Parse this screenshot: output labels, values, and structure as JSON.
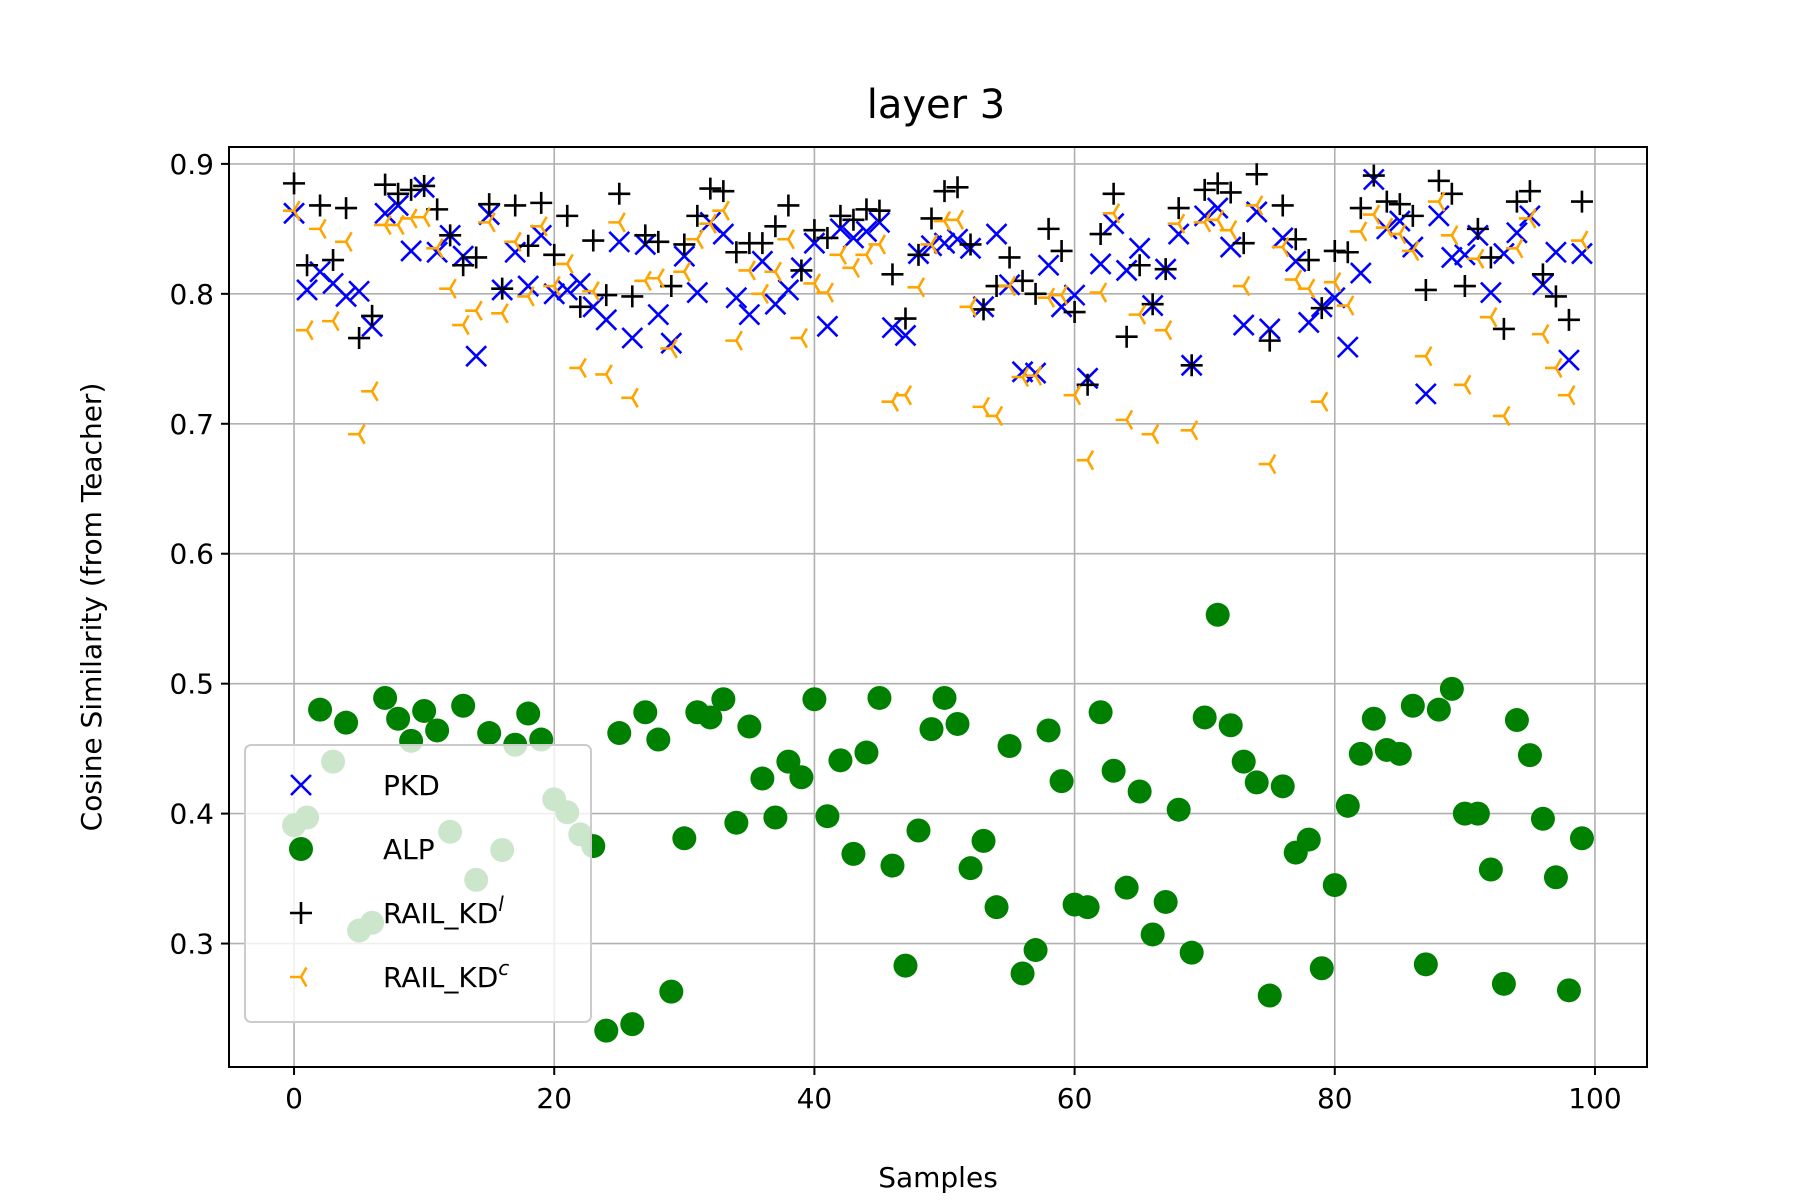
{
  "chart_data": {
    "type": "scatter",
    "title": "layer 3",
    "xlabel": "Samples",
    "ylabel": "Cosine Similarity (from Teacher)",
    "xlim": [
      -5,
      104
    ],
    "ylim": [
      0.205,
      0.913
    ],
    "xticks": [
      0,
      20,
      40,
      60,
      80,
      100
    ],
    "yticks": [
      0.3,
      0.4,
      0.5,
      0.6,
      0.7,
      0.8,
      0.9
    ],
    "xtick_labels": [
      "0",
      "20",
      "40",
      "60",
      "80",
      "100"
    ],
    "ytick_labels": [
      "0.3",
      "0.4",
      "0.5",
      "0.6",
      "0.7",
      "0.8",
      "0.9"
    ],
    "grid": true,
    "legend_position": "lower-left",
    "series": [
      {
        "name": "PKD",
        "marker": "x",
        "color": "#0000ff",
        "y": [
          0.862,
          0.803,
          0.817,
          0.808,
          0.798,
          0.802,
          0.775,
          0.862,
          0.868,
          0.833,
          0.882,
          0.832,
          0.845,
          0.829,
          0.752,
          0.861,
          0.803,
          0.832,
          0.806,
          0.845,
          0.8,
          0.803,
          0.808,
          0.79,
          0.78,
          0.84,
          0.766,
          0.838,
          0.784,
          0.762,
          0.829,
          0.801,
          0.855,
          0.846,
          0.797,
          0.784,
          0.825,
          0.792,
          0.803,
          0.82,
          0.839,
          0.775,
          0.85,
          0.843,
          0.848,
          0.855,
          0.774,
          0.768,
          0.831,
          0.837,
          0.839,
          0.842,
          0.835,
          0.79,
          0.846,
          0.807,
          0.74,
          0.739,
          0.822,
          0.79,
          0.799,
          0.735,
          0.823,
          0.854,
          0.818,
          0.835,
          0.791,
          0.819,
          0.846,
          0.745,
          0.86,
          0.866,
          0.836,
          0.776,
          0.863,
          0.773,
          0.843,
          0.825,
          0.778,
          0.79,
          0.797,
          0.759,
          0.816,
          0.888,
          0.85,
          0.856,
          0.836,
          0.723,
          0.86,
          0.828,
          0.83,
          0.845,
          0.801,
          0.831,
          0.847,
          0.86,
          0.807,
          0.832,
          0.749,
          0.831
        ]
      },
      {
        "name": "ALP",
        "marker": "o",
        "color": "#008000",
        "y": [
          0.391,
          0.397,
          0.48,
          0.44,
          0.47,
          0.31,
          0.316,
          0.489,
          0.473,
          0.456,
          0.479,
          0.464,
          0.386,
          0.483,
          0.349,
          0.462,
          0.372,
          0.453,
          0.477,
          0.457,
          0.411,
          0.401,
          0.384,
          0.375,
          0.233,
          0.462,
          0.238,
          0.478,
          0.457,
          0.263,
          0.381,
          0.478,
          0.474,
          0.488,
          0.393,
          0.467,
          0.427,
          0.397,
          0.44,
          0.428,
          0.488,
          0.398,
          0.441,
          0.369,
          0.447,
          0.489,
          0.36,
          0.283,
          0.387,
          0.465,
          0.489,
          0.469,
          0.358,
          0.379,
          0.328,
          0.452,
          0.277,
          0.295,
          0.464,
          0.425,
          0.33,
          0.328,
          0.478,
          0.433,
          0.343,
          0.417,
          0.307,
          0.332,
          0.403,
          0.293,
          0.474,
          0.553,
          0.468,
          0.44,
          0.424,
          0.26,
          0.421,
          0.37,
          0.38,
          0.281,
          0.345,
          0.406,
          0.446,
          0.473,
          0.449,
          0.446,
          0.483,
          0.284,
          0.48,
          0.496,
          0.4,
          0.4,
          0.357,
          0.269,
          0.472,
          0.445,
          0.396,
          0.351,
          0.264,
          0.381
        ]
      },
      {
        "name": "RAIL_KD",
        "name_superscript": "l",
        "marker": "+",
        "color": "#000000",
        "y": [
          0.885,
          0.822,
          0.868,
          0.826,
          0.866,
          0.766,
          0.783,
          0.884,
          0.877,
          0.88,
          0.883,
          0.865,
          0.845,
          0.822,
          0.828,
          0.869,
          0.804,
          0.868,
          0.837,
          0.87,
          0.83,
          0.86,
          0.79,
          0.841,
          0.799,
          0.877,
          0.798,
          0.845,
          0.84,
          0.806,
          0.838,
          0.86,
          0.881,
          0.879,
          0.832,
          0.839,
          0.839,
          0.852,
          0.868,
          0.818,
          0.849,
          0.843,
          0.86,
          0.857,
          0.865,
          0.864,
          0.815,
          0.781,
          0.83,
          0.858,
          0.879,
          0.882,
          0.838,
          0.788,
          0.806,
          0.828,
          0.81,
          0.8,
          0.85,
          0.833,
          0.786,
          0.73,
          0.846,
          0.877,
          0.767,
          0.822,
          0.792,
          0.819,
          0.866,
          0.745,
          0.88,
          0.885,
          0.878,
          0.839,
          0.892,
          0.764,
          0.868,
          0.842,
          0.826,
          0.789,
          0.833,
          0.832,
          0.866,
          0.891,
          0.871,
          0.869,
          0.86,
          0.803,
          0.887,
          0.877,
          0.806,
          0.85,
          0.828,
          0.773,
          0.871,
          0.879,
          0.815,
          0.798,
          0.78,
          0.871
        ]
      },
      {
        "name": "RAIL_KD",
        "name_superscript": "c",
        "marker": "tri_left",
        "color": "#ffa500",
        "y": [
          0.864,
          0.772,
          0.85,
          0.779,
          0.84,
          0.692,
          0.725,
          0.853,
          0.853,
          0.858,
          0.859,
          0.835,
          0.804,
          0.776,
          0.787,
          0.855,
          0.785,
          0.84,
          0.798,
          0.852,
          0.806,
          0.823,
          0.743,
          0.802,
          0.738,
          0.855,
          0.72,
          0.81,
          0.812,
          0.758,
          0.817,
          0.842,
          0.854,
          0.864,
          0.764,
          0.818,
          0.8,
          0.817,
          0.842,
          0.766,
          0.808,
          0.801,
          0.83,
          0.82,
          0.83,
          0.838,
          0.717,
          0.722,
          0.805,
          0.838,
          0.856,
          0.857,
          0.79,
          0.713,
          0.706,
          0.806,
          0.736,
          0.737,
          0.797,
          0.799,
          0.722,
          0.672,
          0.801,
          0.862,
          0.703,
          0.784,
          0.692,
          0.772,
          0.854,
          0.695,
          0.855,
          0.857,
          0.849,
          0.806,
          0.868,
          0.669,
          0.836,
          0.811,
          0.804,
          0.717,
          0.809,
          0.791,
          0.848,
          0.861,
          0.851,
          0.846,
          0.833,
          0.752,
          0.871,
          0.845,
          0.73,
          0.827,
          0.782,
          0.706,
          0.835,
          0.858,
          0.769,
          0.743,
          0.722,
          0.841
        ]
      }
    ]
  }
}
